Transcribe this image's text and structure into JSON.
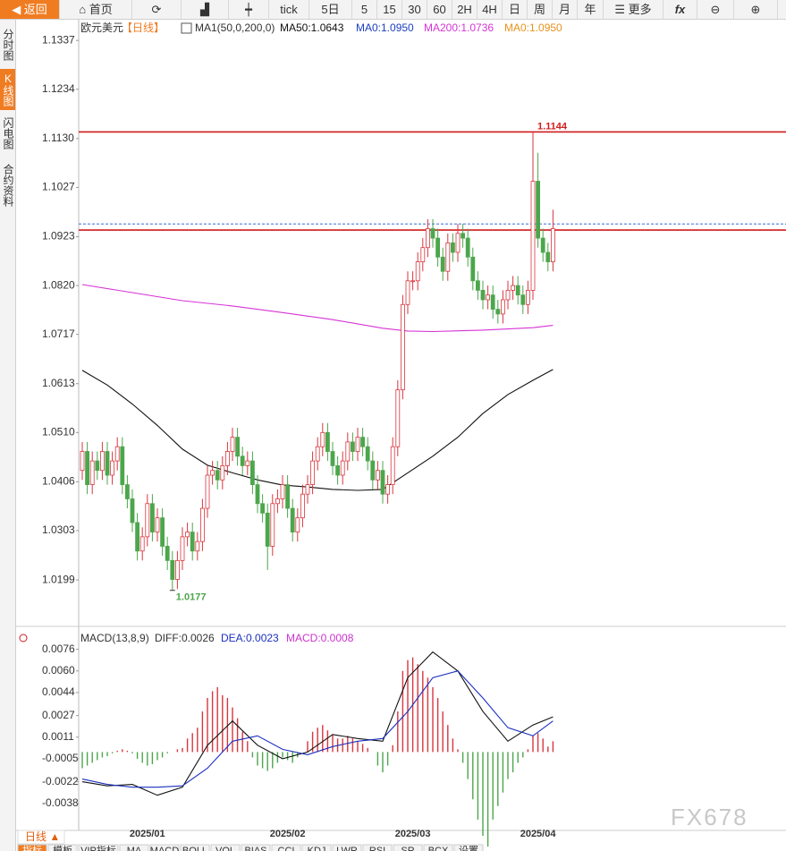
{
  "toolbar": {
    "back": "返回",
    "home": "首页",
    "items": [
      "tick",
      "5日",
      "5",
      "15",
      "30",
      "60",
      "2H",
      "4H",
      "日",
      "周",
      "月",
      "年"
    ],
    "more": "更多",
    "fx": "fx"
  },
  "side_tabs": [
    "分时图",
    "K线图",
    "闪电图",
    "合约资料"
  ],
  "chart_data": [
    {
      "type": "candlestick",
      "title": "欧元美元",
      "period": "【日线】",
      "indicator": "MA1(50,0,200,0)",
      "legend_extra": [
        {
          "text": "MA0:1.0950",
          "color": "#1a3fbf"
        },
        {
          "text": "MA0:1.0950",
          "color": "#e8921c"
        }
      ],
      "up_color": "#d9363e",
      "down_color": "#4ca64c",
      "categories": [
        null,
        null,
        null,
        null,
        null,
        null,
        null,
        null,
        null,
        null,
        null,
        null,
        null,
        "2025/01",
        null,
        null,
        null,
        null,
        null,
        null,
        null,
        null,
        null,
        null,
        null,
        null,
        null,
        null,
        null,
        null,
        null,
        null,
        null,
        null,
        null,
        null,
        null,
        null,
        null,
        null,
        null,
        "2025/02",
        null,
        null,
        null,
        null,
        null,
        null,
        null,
        null,
        null,
        null,
        null,
        null,
        null,
        null,
        null,
        null,
        null,
        null,
        null,
        null,
        null,
        null,
        null,
        null,
        "2025/03",
        null,
        null,
        null,
        null,
        null,
        null,
        null,
        null,
        null,
        null,
        null,
        null,
        null,
        null,
        null,
        null,
        null,
        null,
        null,
        null,
        null,
        null,
        null,
        null,
        "2025/04",
        null,
        null,
        null
      ],
      "ohlc": [
        [
          1.043,
          1.049,
          1.041,
          1.047
        ],
        [
          1.047,
          1.049,
          1.038,
          1.04
        ],
        [
          1.04,
          1.047,
          1.038,
          1.045
        ],
        [
          1.045,
          1.047,
          1.041,
          1.043
        ],
        [
          1.043,
          1.049,
          1.041,
          1.047
        ],
        [
          1.047,
          1.049,
          1.04,
          1.042
        ],
        [
          1.042,
          1.047,
          1.04,
          1.045
        ],
        [
          1.045,
          1.05,
          1.043,
          1.048
        ],
        [
          1.048,
          1.05,
          1.038,
          1.04
        ],
        [
          1.04,
          1.042,
          1.035,
          1.037
        ],
        [
          1.037,
          1.039,
          1.03,
          1.032
        ],
        [
          1.032,
          1.034,
          1.024,
          1.026
        ],
        [
          1.026,
          1.031,
          1.024,
          1.029
        ],
        [
          1.029,
          1.038,
          1.027,
          1.036
        ],
        [
          1.036,
          1.038,
          1.028,
          1.03
        ],
        [
          1.03,
          1.035,
          1.028,
          1.033
        ],
        [
          1.033,
          1.035,
          1.025,
          1.027
        ],
        [
          1.027,
          1.029,
          1.022,
          1.024
        ],
        [
          1.024,
          1.026,
          1.0177,
          1.02
        ],
        [
          1.02,
          1.026,
          1.018,
          1.024
        ],
        [
          1.024,
          1.031,
          1.022,
          1.029
        ],
        [
          1.029,
          1.032,
          1.027,
          1.03
        ],
        [
          1.03,
          1.032,
          1.024,
          1.026
        ],
        [
          1.026,
          1.03,
          1.024,
          1.028
        ],
        [
          1.028,
          1.037,
          1.026,
          1.035
        ],
        [
          1.035,
          1.044,
          1.033,
          1.042
        ],
        [
          1.042,
          1.045,
          1.04,
          1.043
        ],
        [
          1.043,
          1.045,
          1.039,
          1.041
        ],
        [
          1.041,
          1.046,
          1.039,
          1.044
        ],
        [
          1.044,
          1.049,
          1.042,
          1.047
        ],
        [
          1.047,
          1.052,
          1.045,
          1.05
        ],
        [
          1.05,
          1.052,
          1.044,
          1.046
        ],
        [
          1.046,
          1.048,
          1.042,
          1.044
        ],
        [
          1.044,
          1.047,
          1.042,
          1.045
        ],
        [
          1.045,
          1.047,
          1.038,
          1.04
        ],
        [
          1.04,
          1.042,
          1.034,
          1.036
        ],
        [
          1.036,
          1.038,
          1.032,
          1.034
        ],
        [
          1.034,
          1.036,
          1.022,
          1.027
        ],
        [
          1.027,
          1.038,
          1.025,
          1.036
        ],
        [
          1.036,
          1.039,
          1.034,
          1.037
        ],
        [
          1.037,
          1.042,
          1.035,
          1.04
        ],
        [
          1.04,
          1.042,
          1.033,
          1.035
        ],
        [
          1.035,
          1.037,
          1.028,
          1.03
        ],
        [
          1.03,
          1.035,
          1.028,
          1.033
        ],
        [
          1.033,
          1.04,
          1.031,
          1.038
        ],
        [
          1.038,
          1.042,
          1.036,
          1.04
        ],
        [
          1.04,
          1.047,
          1.038,
          1.045
        ],
        [
          1.045,
          1.05,
          1.043,
          1.048
        ],
        [
          1.048,
          1.053,
          1.046,
          1.051
        ],
        [
          1.051,
          1.053,
          1.045,
          1.047
        ],
        [
          1.047,
          1.049,
          1.042,
          1.044
        ],
        [
          1.044,
          1.046,
          1.04,
          1.042
        ],
        [
          1.042,
          1.047,
          1.04,
          1.045
        ],
        [
          1.045,
          1.051,
          1.043,
          1.049
        ],
        [
          1.049,
          1.051,
          1.045,
          1.047
        ],
        [
          1.047,
          1.052,
          1.045,
          1.05
        ],
        [
          1.05,
          1.052,
          1.046,
          1.048
        ],
        [
          1.048,
          1.05,
          1.043,
          1.045
        ],
        [
          1.045,
          1.047,
          1.039,
          1.041
        ],
        [
          1.041,
          1.045,
          1.039,
          1.043
        ],
        [
          1.043,
          1.045,
          1.036,
          1.038
        ],
        [
          1.038,
          1.042,
          1.036,
          1.04
        ],
        [
          1.04,
          1.05,
          1.038,
          1.048
        ],
        [
          1.048,
          1.062,
          1.046,
          1.06
        ],
        [
          1.06,
          1.08,
          1.058,
          1.078
        ],
        [
          1.078,
          1.085,
          1.076,
          1.083
        ],
        [
          1.083,
          1.085,
          1.081,
          1.083
        ],
        [
          1.083,
          1.089,
          1.081,
          1.087
        ],
        [
          1.087,
          1.092,
          1.085,
          1.09
        ],
        [
          1.09,
          1.096,
          1.088,
          1.094
        ],
        [
          1.094,
          1.096,
          1.09,
          1.092
        ],
        [
          1.092,
          1.094,
          1.086,
          1.088
        ],
        [
          1.088,
          1.09,
          1.083,
          1.085
        ],
        [
          1.085,
          1.093,
          1.083,
          1.091
        ],
        [
          1.091,
          1.093,
          1.087,
          1.089
        ],
        [
          1.089,
          1.095,
          1.087,
          1.093
        ],
        [
          1.093,
          1.095,
          1.09,
          1.092
        ],
        [
          1.092,
          1.094,
          1.086,
          1.088
        ],
        [
          1.088,
          1.09,
          1.081,
          1.083
        ],
        [
          1.083,
          1.085,
          1.079,
          1.081
        ],
        [
          1.081,
          1.083,
          1.077,
          1.079
        ],
        [
          1.079,
          1.082,
          1.077,
          1.08
        ],
        [
          1.08,
          1.082,
          1.075,
          1.077
        ],
        [
          1.077,
          1.079,
          1.074,
          1.076
        ],
        [
          1.076,
          1.081,
          1.074,
          1.079
        ],
        [
          1.079,
          1.083,
          1.077,
          1.081
        ],
        [
          1.081,
          1.084,
          1.079,
          1.082
        ],
        [
          1.082,
          1.084,
          1.078,
          1.08
        ],
        [
          1.08,
          1.082,
          1.076,
          1.078
        ],
        [
          1.078,
          1.083,
          1.076,
          1.081
        ],
        [
          1.081,
          1.1144,
          1.079,
          1.104
        ],
        [
          1.104,
          1.11,
          1.09,
          1.092
        ],
        [
          1.092,
          1.094,
          1.087,
          1.089
        ],
        [
          1.089,
          1.091,
          1.085,
          1.087
        ],
        [
          1.087,
          1.098,
          1.085,
          1.094
        ]
      ],
      "series": [
        {
          "name": "MA50:1.0643",
          "color": "#111111",
          "x": [
            0,
            5,
            10,
            15,
            20,
            25,
            30,
            35,
            40,
            45,
            50,
            55,
            60,
            65,
            70,
            75,
            80,
            85,
            90,
            94
          ],
          "values": [
            1.0641,
            1.061,
            1.057,
            1.0525,
            1.0475,
            1.0441,
            1.0425,
            1.041,
            1.0399,
            1.0395,
            1.039,
            1.0388,
            1.039,
            1.0425,
            1.046,
            1.05,
            1.055,
            1.059,
            1.062,
            1.0643
          ]
        },
        {
          "name": "MA200:1.0736",
          "color": "#d633d6",
          "x": [
            0,
            10,
            20,
            30,
            40,
            50,
            60,
            65,
            70,
            80,
            90,
            94
          ],
          "values": [
            1.0822,
            1.0805,
            1.0788,
            1.0777,
            1.0763,
            1.0748,
            1.073,
            1.0724,
            1.0723,
            1.0726,
            1.0731,
            1.0736
          ]
        }
      ],
      "hlines": [
        1.1144,
        1.0937
      ],
      "hline_color": "#d01c1c",
      "price_line": 1.095,
      "price_line_color": "#3a6fd8",
      "ylim": [
        1.0101,
        1.1377
      ],
      "yticks": [
        1.1337,
        1.1234,
        {
          "value": 1.113,
          "label": "1.1130"
        },
        1.1027,
        1.0923,
        {
          "value": 1.082,
          "label": "1.0820"
        },
        1.0717,
        1.0613,
        {
          "value": 1.051,
          "label": "1.0510"
        },
        1.0406,
        1.0303,
        1.0199
      ]
    },
    {
      "type": "macd",
      "title": "MACD(13,8,9)",
      "series": [
        {
          "name": "DIFF:0.0026",
          "color": "#111111",
          "x": [
            0,
            5,
            10,
            15,
            20,
            25,
            30,
            35,
            40,
            45,
            50,
            55,
            60,
            65,
            70,
            75,
            80,
            85,
            90,
            94
          ],
          "values": [
            -0.0022,
            -0.0025,
            -0.0024,
            -0.0032,
            -0.0026,
            0.0005,
            0.0023,
            0.0005,
            -0.0005,
            0.0,
            0.0013,
            0.001,
            0.0008,
            0.0055,
            0.0074,
            0.006,
            0.003,
            0.0008,
            0.002,
            0.0026
          ]
        },
        {
          "name": "DEA:0.0023",
          "color": "#1a2fbf",
          "x": [
            0,
            5,
            10,
            15,
            20,
            25,
            30,
            35,
            40,
            45,
            50,
            55,
            60,
            65,
            70,
            75,
            80,
            85,
            90,
            94
          ],
          "values": [
            -0.002,
            -0.0024,
            -0.0026,
            -0.0026,
            -0.0025,
            -0.0012,
            0.0008,
            0.0012,
            0.0002,
            -0.0002,
            0.0004,
            0.0008,
            0.001,
            0.003,
            0.0055,
            0.006,
            0.004,
            0.0018,
            0.0012,
            0.0023
          ]
        }
      ],
      "histogram": {
        "name": "MACD:0.0008",
        "color": "#cc33cc",
        "up_color": "#d9363e",
        "down_color": "#4ca64c",
        "values": [
          -0.0012,
          -0.001,
          -0.0008,
          -0.0006,
          -0.0004,
          -0.0003,
          -0.0001,
          0.0001,
          0.0002,
          0.0001,
          -0.0001,
          -0.0005,
          -0.0008,
          -0.001,
          -0.0009,
          -0.0006,
          -0.0004,
          -0.0001,
          0.0,
          0.0002,
          0.0003,
          0.001,
          0.0014,
          0.0018,
          0.003,
          0.004,
          0.0045,
          0.0048,
          0.0042,
          0.004,
          0.0033,
          0.0025,
          0.0015,
          0.0008,
          -0.0004,
          -0.001,
          -0.0012,
          -0.0014,
          -0.0012,
          -0.0008,
          -0.0004,
          -0.0006,
          -0.0008,
          -0.0004,
          0.0,
          0.0008,
          0.0015,
          0.0018,
          0.002,
          0.0016,
          0.0013,
          0.001,
          0.001,
          0.0012,
          0.001,
          0.0008,
          0.0006,
          0.0003,
          0.0,
          -0.001,
          -0.0015,
          -0.001,
          0.0005,
          0.003,
          0.006,
          0.0068,
          0.007,
          0.0065,
          0.006,
          0.0055,
          0.0048,
          0.004,
          0.003,
          0.002,
          0.001,
          0.0002,
          -0.0008,
          -0.002,
          -0.0035,
          -0.005,
          -0.0062,
          -0.007,
          -0.005,
          -0.004,
          -0.003,
          -0.002,
          -0.0015,
          -0.0008,
          -0.0004,
          0.0002,
          0.0012,
          0.0014,
          0.001,
          0.0004,
          0.0008
        ]
      },
      "ylim": [
        -0.0058,
        0.0085
      ],
      "yticks": [
        0.0076,
        {
          "value": 0.006,
          "label": "0.0060"
        },
        0.0044,
        0.0027,
        0.0011,
        -0.0005,
        -0.0022,
        -0.0038
      ]
    }
  ],
  "footer": {
    "period": "日线 ▲",
    "tabs": [
      "指标",
      "模板",
      "VIP指标",
      "MA",
      "MACD",
      "BOLL",
      "VOL",
      "BIAS",
      "CCI",
      "KDJ",
      "LWR",
      "RSI",
      "SR",
      "BCX",
      "设置"
    ]
  },
  "watermark": "FX678"
}
